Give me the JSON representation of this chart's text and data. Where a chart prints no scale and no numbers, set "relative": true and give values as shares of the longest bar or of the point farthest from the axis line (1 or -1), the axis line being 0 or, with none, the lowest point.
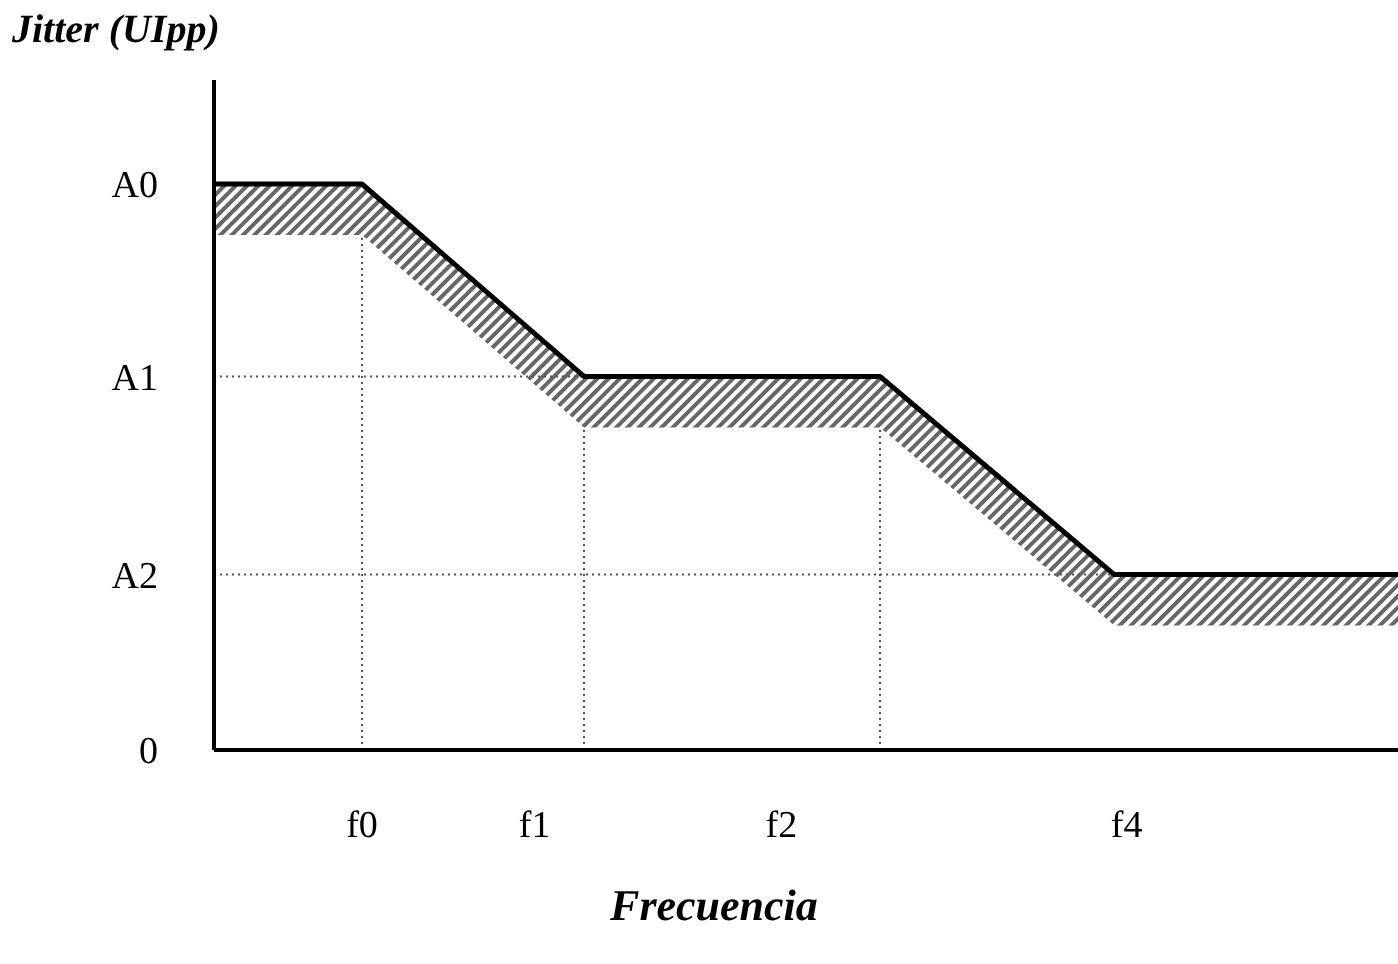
{
  "chart_data": {
    "type": "line",
    "ylabel": "Jitter (UIpp)",
    "xlabel": "Frecuencia",
    "relative": true,
    "categories": [
      null,
      null,
      null,
      null,
      null,
      null,
      null,
      null,
      null,
      null,
      null,
      null,
      "f0",
      null,
      null,
      null,
      null,
      null,
      null,
      null,
      null,
      null,
      null,
      null,
      null,
      null,
      "f1",
      null,
      null,
      null,
      null,
      null,
      null,
      null,
      null,
      null,
      null,
      null,
      null,
      null,
      null,
      null,
      null,
      null,
      null,
      null,
      "f2",
      null,
      null,
      null,
      null,
      null,
      null,
      null,
      null,
      null,
      null,
      null,
      null,
      null,
      null,
      null,
      null,
      null,
      null,
      null,
      null,
      null,
      null,
      null,
      null,
      null,
      null,
      null,
      "f4",
      null,
      null,
      null,
      null,
      null,
      null,
      null,
      null,
      null,
      null,
      null,
      null,
      null,
      null,
      null,
      null,
      null,
      null,
      null,
      null,
      null,
      null
    ],
    "series": [
      {
        "color": "#000000",
        "values": [
          1,
          null,
          null,
          null,
          null,
          null,
          null,
          null,
          null,
          null,
          null,
          null,
          1,
          null,
          null,
          null,
          null,
          null,
          null,
          null,
          null,
          null,
          null,
          null,
          null,
          null,
          null,
          null,
          null,
          null,
          0.66,
          null,
          null,
          null,
          null,
          null,
          null,
          null,
          null,
          null,
          null,
          null,
          null,
          null,
          null,
          null,
          null,
          null,
          null,
          null,
          null,
          null,
          null,
          null,
          0.66,
          null,
          null,
          null,
          null,
          null,
          null,
          null,
          null,
          null,
          null,
          null,
          null,
          null,
          null,
          null,
          null,
          null,
          null,
          0.31,
          null,
          null,
          null,
          null,
          null,
          null,
          null,
          null,
          null,
          null,
          null,
          null,
          null,
          null,
          null,
          null,
          null,
          null,
          null,
          null,
          null,
          null,
          0.31
        ],
        "lower": [
          0.91,
          null,
          null,
          null,
          null,
          null,
          null,
          null,
          null,
          null,
          null,
          null,
          0.91,
          null,
          null,
          null,
          null,
          null,
          null,
          null,
          null,
          null,
          null,
          null,
          null,
          null,
          null,
          null,
          null,
          null,
          0.57,
          null,
          null,
          null,
          null,
          null,
          null,
          null,
          null,
          null,
          null,
          null,
          null,
          null,
          null,
          null,
          null,
          null,
          null,
          null,
          null,
          null,
          null,
          null,
          0.57,
          null,
          null,
          null,
          null,
          null,
          null,
          null,
          null,
          null,
          null,
          null,
          null,
          null,
          null,
          null,
          null,
          null,
          null,
          0.22,
          null,
          null,
          null,
          null,
          null,
          null,
          null,
          null,
          null,
          null,
          null,
          null,
          null,
          null,
          null,
          null,
          null,
          null,
          null,
          null,
          null,
          null,
          0.22
        ],
        "upper": [
          1,
          null,
          null,
          null,
          null,
          null,
          null,
          null,
          null,
          null,
          null,
          null,
          1,
          null,
          null,
          null,
          null,
          null,
          null,
          null,
          null,
          null,
          null,
          null,
          null,
          null,
          null,
          null,
          null,
          null,
          0.66,
          null,
          null,
          null,
          null,
          null,
          null,
          null,
          null,
          null,
          null,
          null,
          null,
          null,
          null,
          null,
          null,
          null,
          null,
          null,
          null,
          null,
          null,
          null,
          0.66,
          null,
          null,
          null,
          null,
          null,
          null,
          null,
          null,
          null,
          null,
          null,
          null,
          null,
          null,
          null,
          null,
          null,
          null,
          0.31,
          null,
          null,
          null,
          null,
          null,
          null,
          null,
          null,
          null,
          null,
          null,
          null,
          null,
          null,
          null,
          null,
          null,
          null,
          null,
          null,
          null,
          null,
          0.31
        ]
      }
    ],
    "annotations": [
      "A0",
      "0"
    ],
    "ref_lines": [
      {
        "axis": "y",
        "value": 0.66,
        "label": "A1",
        "line_style": "dotted"
      },
      {
        "axis": "y",
        "value": 0.31,
        "label": "A2",
        "line_style": "dotted"
      }
    ],
    "grid": false,
    "legend": false,
    "marker": "none",
    "line_style": "solid"
  }
}
